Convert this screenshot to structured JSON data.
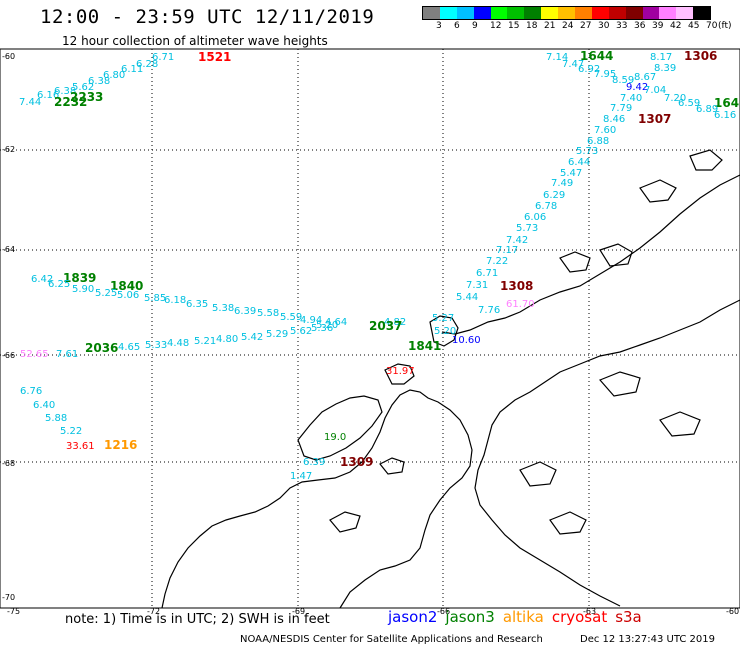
{
  "title": "12:00 - 23:59 UTC 12/11/2019",
  "subtitle": "12 hour collection of altimeter wave heights",
  "colorbar": {
    "colors": [
      "#808080",
      "#00ffff",
      "#00c0ff",
      "#0000ff",
      "#00ff00",
      "#00c000",
      "#008000",
      "#ffff00",
      "#ffc000",
      "#ff8000",
      "#ff0000",
      "#c00000",
      "#800000",
      "#a000a0",
      "#ff80ff",
      "#ffc0ff",
      "#000000"
    ],
    "labels": [
      "3",
      "6",
      "9",
      "12",
      "15",
      "18",
      "21",
      "24",
      "27",
      "30",
      "33",
      "36",
      "39",
      "42",
      "45",
      "70"
    ],
    "unit": "(ft)"
  },
  "axes": {
    "lat_labels": [
      "-60",
      "-62",
      "-64",
      "-66",
      "-68",
      "-70"
    ],
    "lon_labels": [
      "-75",
      "-72",
      "-69",
      "-66",
      "-63",
      "-60"
    ]
  },
  "colors": {
    "jason2": "#0000ff",
    "jason3": "#008000",
    "altika": "#ff9900",
    "cryosat": "#ff0000",
    "s3a": "#cc0000",
    "track": "#00c0e0",
    "time_dark": "#800000",
    "pink": "#ff80ff",
    "coast": "#000000",
    "grid": "#000000"
  },
  "wave_labels": [
    {
      "t": "6.71",
      "c": "track"
    },
    {
      "t": "1521",
      "c": "cryosat"
    },
    {
      "t": "6.28",
      "c": "track"
    },
    {
      "t": "6.11",
      "c": "track"
    },
    {
      "t": "6.80",
      "c": "track"
    },
    {
      "t": "6.38",
      "c": "track"
    },
    {
      "t": "5.62",
      "c": "track"
    },
    {
      "t": "6.38",
      "c": "track"
    },
    {
      "t": "6.16",
      "c": "track"
    },
    {
      "t": "2233",
      "c": "jason3"
    },
    {
      "t": "7.44",
      "c": "track"
    },
    {
      "t": "2232",
      "c": "jason3"
    },
    {
      "t": "7.14",
      "c": "track"
    },
    {
      "t": "1644",
      "c": "jason3"
    },
    {
      "t": "8.17",
      "c": "track"
    },
    {
      "t": "1306",
      "c": "time_dark"
    },
    {
      "t": "7.47",
      "c": "track"
    },
    {
      "t": "6.92",
      "c": "track"
    },
    {
      "t": "8.39",
      "c": "track"
    },
    {
      "t": "7.95",
      "c": "track"
    },
    {
      "t": "8.59",
      "c": "track"
    },
    {
      "t": "8.67",
      "c": "track"
    },
    {
      "t": "9.42",
      "c": "jason2"
    },
    {
      "t": "7.04",
      "c": "track"
    },
    {
      "t": "7.40",
      "c": "track"
    },
    {
      "t": "7.20",
      "c": "track"
    },
    {
      "t": "6.59",
      "c": "track"
    },
    {
      "t": "164",
      "c": "jason3"
    },
    {
      "t": "7.79",
      "c": "track"
    },
    {
      "t": "6.89",
      "c": "track"
    },
    {
      "t": "6.16",
      "c": "track"
    },
    {
      "t": "8.46",
      "c": "track"
    },
    {
      "t": "1307",
      "c": "time_dark"
    },
    {
      "t": "7.60",
      "c": "track"
    },
    {
      "t": "6.88",
      "c": "track"
    },
    {
      "t": "5.73",
      "c": "track"
    },
    {
      "t": "6.44",
      "c": "track"
    },
    {
      "t": "5.47",
      "c": "track"
    },
    {
      "t": "7.49",
      "c": "track"
    },
    {
      "t": "6.29",
      "c": "track"
    },
    {
      "t": "6.78",
      "c": "track"
    },
    {
      "t": "6.06",
      "c": "track"
    },
    {
      "t": "5.73",
      "c": "track"
    },
    {
      "t": "7.42",
      "c": "track"
    },
    {
      "t": "7.17",
      "c": "track"
    },
    {
      "t": "7.22",
      "c": "track"
    },
    {
      "t": "6.71",
      "c": "track"
    },
    {
      "t": "7.31",
      "c": "track"
    },
    {
      "t": "1308",
      "c": "time_dark"
    },
    {
      "t": "5.44",
      "c": "track"
    },
    {
      "t": "61.70",
      "c": "pink"
    },
    {
      "t": "7.76",
      "c": "track"
    },
    {
      "t": "5.27",
      "c": "track"
    },
    {
      "t": "10.60",
      "c": "jason2"
    },
    {
      "t": "6.42",
      "c": "track"
    },
    {
      "t": "1839",
      "c": "jason3"
    },
    {
      "t": "6.25",
      "c": "track"
    },
    {
      "t": "5.90",
      "c": "track"
    },
    {
      "t": "1840",
      "c": "jason3"
    },
    {
      "t": "5.25",
      "c": "track"
    },
    {
      "t": "5.06",
      "c": "track"
    },
    {
      "t": "5.85",
      "c": "track"
    },
    {
      "t": "6.18",
      "c": "track"
    },
    {
      "t": "6.35",
      "c": "track"
    },
    {
      "t": "5.38",
      "c": "track"
    },
    {
      "t": "6.39",
      "c": "track"
    },
    {
      "t": "5.58",
      "c": "track"
    },
    {
      "t": "5.59",
      "c": "track"
    },
    {
      "t": "4.94",
      "c": "track"
    },
    {
      "t": "4.64",
      "c": "track"
    },
    {
      "t": "4.82",
      "c": "track"
    },
    {
      "t": "2037",
      "c": "jason3"
    },
    {
      "t": "5.20",
      "c": "track"
    },
    {
      "t": "1841",
      "c": "jason3"
    },
    {
      "t": "52.65",
      "c": "pink"
    },
    {
      "t": "7.61",
      "c": "track"
    },
    {
      "t": "2036",
      "c": "jason3"
    },
    {
      "t": "4.65",
      "c": "track"
    },
    {
      "t": "5.33",
      "c": "track"
    },
    {
      "t": "4.48",
      "c": "track"
    },
    {
      "t": "5.21",
      "c": "track"
    },
    {
      "t": "4.80",
      "c": "track"
    },
    {
      "t": "5.42",
      "c": "track"
    },
    {
      "t": "5.29",
      "c": "track"
    },
    {
      "t": "5.62",
      "c": "track"
    },
    {
      "t": "5.36",
      "c": "track"
    },
    {
      "t": "5.20",
      "c": "track"
    },
    {
      "t": "31.97",
      "c": "cryosat"
    },
    {
      "t": "6.76",
      "c": "track"
    },
    {
      "t": "6.40",
      "c": "track"
    },
    {
      "t": "5.88",
      "c": "track"
    },
    {
      "t": "5.22",
      "c": "track"
    },
    {
      "t": "33.61",
      "c": "cryosat"
    },
    {
      "t": "1216",
      "c": "altika"
    },
    {
      "t": "19.0",
      "c": "jason3"
    },
    {
      "t": "6.39",
      "c": "track"
    },
    {
      "t": "1309",
      "c": "time_dark"
    },
    {
      "t": "1.47",
      "c": "track"
    }
  ],
  "note": "note:  1) Time is in UTC;  2) SWH is in feet",
  "legend": [
    {
      "label": "jason2",
      "c": "jason2"
    },
    {
      "label": "jason3",
      "c": "jason3"
    },
    {
      "label": "altika",
      "c": "altika"
    },
    {
      "label": "cryosat",
      "c": "cryosat"
    },
    {
      "label": "s3a",
      "c": "s3a"
    }
  ],
  "credit": "NOAA/NESDIS Center for Satellite Applications and Research",
  "timestamp": "Dec 12 13:27:43 UTC 2019"
}
